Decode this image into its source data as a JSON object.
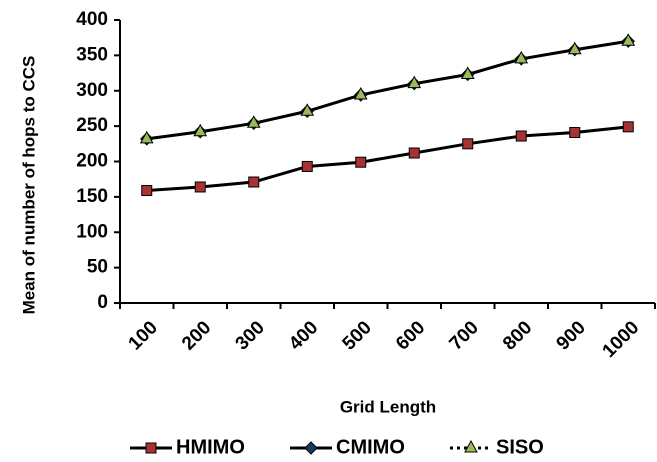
{
  "chart_data": {
    "type": "line",
    "title": "",
    "xlabel": "Grid Length",
    "ylabel": "Mean of number of hops to CCS",
    "categories": [
      "100",
      "200",
      "300",
      "400",
      "500",
      "600",
      "700",
      "800",
      "900",
      "1000"
    ],
    "ylim": [
      0,
      400
    ],
    "yticks": [
      0,
      50,
      100,
      150,
      200,
      250,
      300,
      350,
      400
    ],
    "grid": false,
    "legend_position": "bottom",
    "series": [
      {
        "name": "HMIMO",
        "marker": "square",
        "line": "solid",
        "color": "#000000",
        "marker_fill": "#a83232",
        "values": [
          159,
          164,
          171,
          193,
          199,
          212,
          225,
          236,
          241,
          249
        ]
      },
      {
        "name": "CMIMO",
        "marker": "diamond",
        "line": "solid",
        "color": "#000000",
        "marker_fill": "#1f3864",
        "values": [
          232,
          242,
          254,
          271,
          294,
          310,
          323,
          345,
          358,
          370
        ]
      },
      {
        "name": "SISO",
        "marker": "triangle",
        "line": "dotted",
        "color": "#000000",
        "marker_fill": "#9bbb59",
        "values": [
          232,
          242,
          254,
          271,
          294,
          310,
          323,
          345,
          358,
          370
        ]
      }
    ]
  }
}
